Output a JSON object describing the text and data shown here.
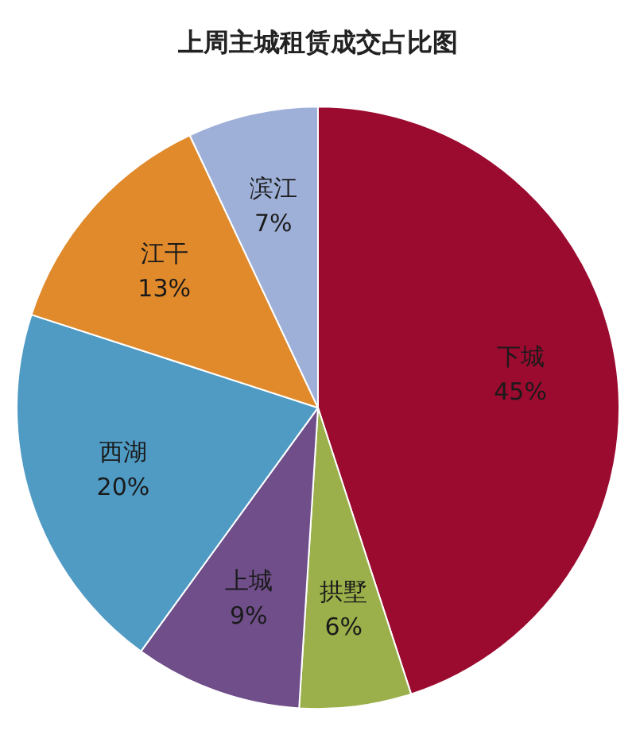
{
  "chart_data": {
    "type": "pie",
    "title": "上周主城租赁成交占比图",
    "categories": [
      "下城",
      "拱墅",
      "上城",
      "西湖",
      "江干",
      "滨江"
    ],
    "values": [
      45,
      6,
      9,
      20,
      13,
      7
    ],
    "colors": [
      "#9b0a2f",
      "#9bb04a",
      "#6f4e8a",
      "#4f9bc4",
      "#e08a2c",
      "#9fb0d8"
    ],
    "value_labels": [
      "45%",
      "6%",
      "9%",
      "20%",
      "13%",
      "7%"
    ],
    "legend": false
  }
}
